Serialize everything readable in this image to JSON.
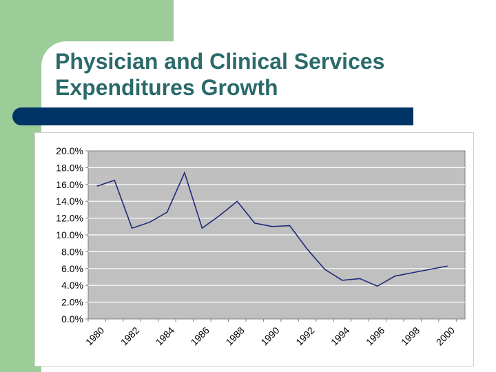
{
  "slide": {
    "title_line1": "Physician and Clinical Services",
    "title_line2": "Expenditures Growth"
  },
  "colors": {
    "green_panel": "#9ccc98",
    "title_text": "#2b6a6a",
    "title_bar": "#003366",
    "plot_background": "#c0c0c0",
    "line": "#1f2a7a"
  },
  "chart_data": {
    "type": "line",
    "title": "",
    "xlabel": "",
    "ylabel": "",
    "x": [
      1980,
      1981,
      1982,
      1983,
      1984,
      1985,
      1986,
      1987,
      1988,
      1989,
      1990,
      1991,
      1992,
      1993,
      1994,
      1995,
      1996,
      1997,
      1998,
      1999,
      2000
    ],
    "x_tick_labels": [
      "1980",
      "1982",
      "1984",
      "1986",
      "1988",
      "1990",
      "1992",
      "1994",
      "1996",
      "1998",
      "2000"
    ],
    "y_tick_labels": [
      "0.0%",
      "2.0%",
      "4.0%",
      "6.0%",
      "8.0%",
      "10.0%",
      "12.0%",
      "14.0%",
      "16.0%",
      "18.0%",
      "20.0%"
    ],
    "ylim": [
      0,
      20
    ],
    "grid": true,
    "legend": "none",
    "series": [
      {
        "values": [
          15.8,
          16.5,
          10.8,
          11.5,
          12.7,
          17.4,
          10.8,
          12.3,
          14.0,
          11.4,
          11.0,
          11.1,
          8.3,
          5.9,
          4.6,
          4.8,
          3.9,
          5.1,
          5.5,
          5.9,
          6.3
        ]
      }
    ]
  }
}
